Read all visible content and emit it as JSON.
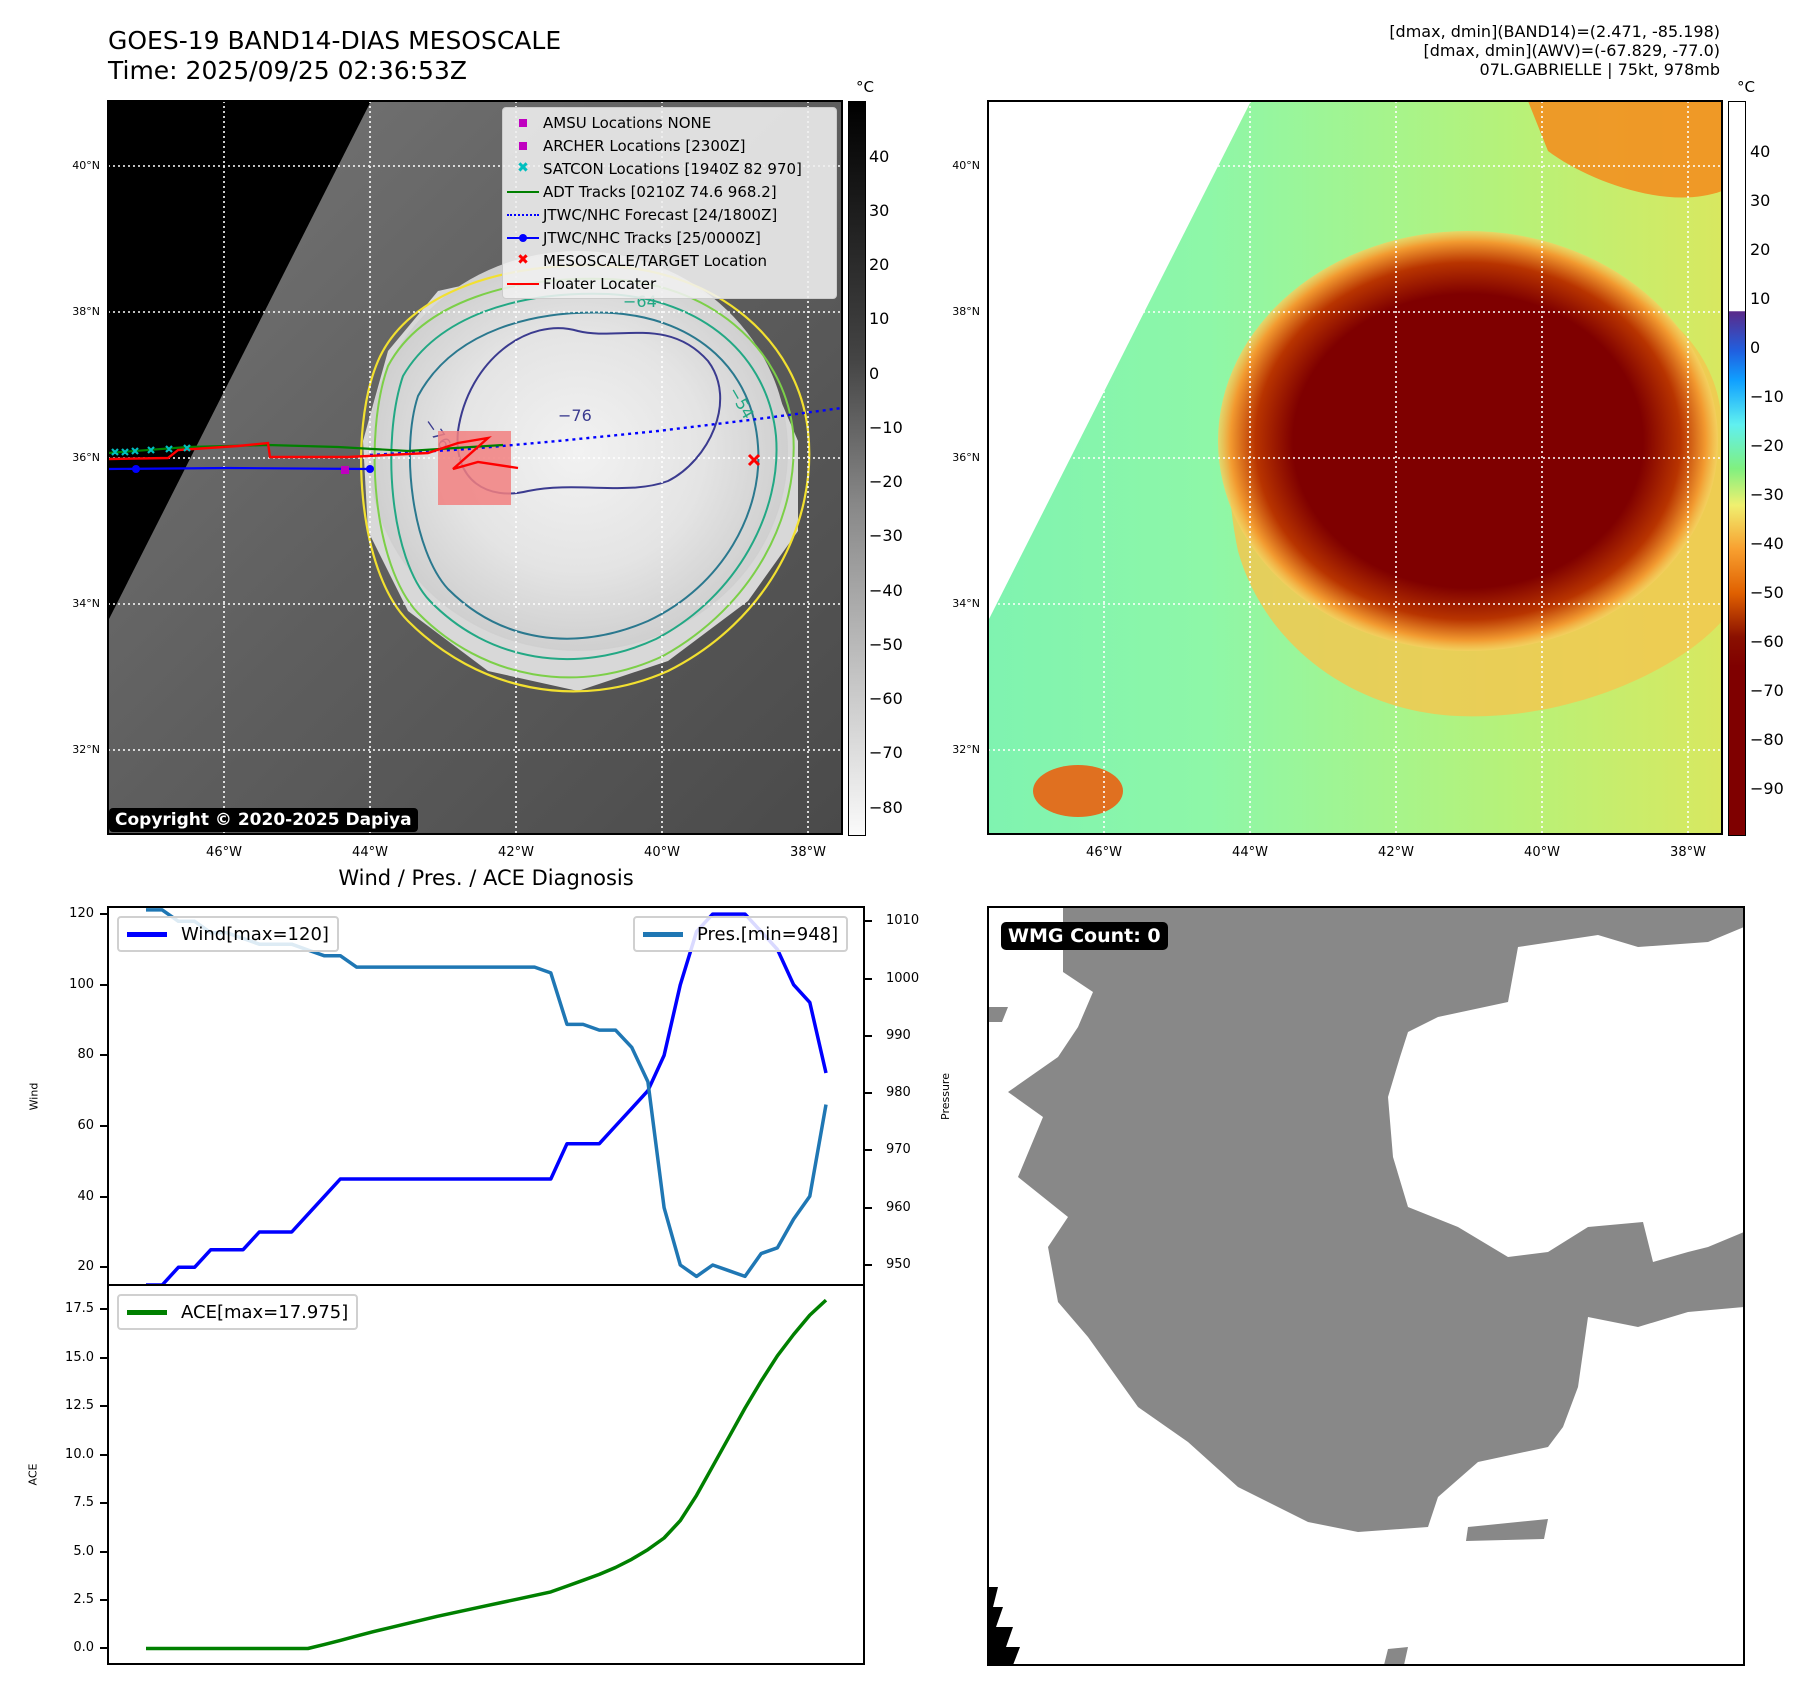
{
  "header": {
    "title": "GOES-19 BAND14-DIAS MESOSCALE",
    "time": "Time: 2025/09/25 02:36:53Z",
    "stats_band14": "[dmax, dmin](BAND14)=(2.471, -85.198)",
    "stats_awv": "[dmax, dmin](AWV)=(-67.829, -77.0)",
    "storm": "07L.GABRIELLE | 75kt, 978mb"
  },
  "maps": {
    "lat_ticks": [
      "40°N",
      "38°N",
      "36°N",
      "34°N",
      "32°N"
    ],
    "lon_ticks": [
      "46°W",
      "44°W",
      "42°W",
      "40°W",
      "38°W"
    ],
    "unit": "°C",
    "copyright": "Copyright © 2020-2025 Dapiya",
    "left_colorbar_ticks": [
      "40",
      "30",
      "20",
      "10",
      "0",
      "−10",
      "−20",
      "−30",
      "−40",
      "−50",
      "−60",
      "−70",
      "−80"
    ],
    "right_colorbar_ticks": [
      "40",
      "30",
      "20",
      "10",
      "0",
      "−10",
      "−20",
      "−30",
      "−40",
      "−50",
      "−60",
      "−70",
      "−80",
      "−90"
    ],
    "contour_labels": [
      "−76",
      "−76",
      "−64",
      "−54",
      "−54"
    ],
    "legend": [
      {
        "label": "AMSU Locations NONE",
        "symbol": "square",
        "color": "#c000c0"
      },
      {
        "label": "ARCHER Locations [2300Z]",
        "symbol": "square",
        "color": "#c000c0"
      },
      {
        "label": "SATCON Locations [1940Z 82 970]",
        "symbol": "x",
        "color": "#00bfbf"
      },
      {
        "label": "ADT Tracks [0210Z 74.6 968.2]",
        "symbol": "line",
        "color": "#008000"
      },
      {
        "label": "JTWC/NHC Forecast [24/1800Z]",
        "symbol": "dotted",
        "color": "#0000ff"
      },
      {
        "label": "JTWC/NHC Tracks [25/0000Z]",
        "symbol": "line-dot",
        "color": "#0000ff"
      },
      {
        "label": "MESOSCALE/TARGET Location",
        "symbol": "x",
        "color": "#ff0000"
      },
      {
        "label": "Floater Locater",
        "symbol": "line",
        "color": "#ff0000"
      }
    ]
  },
  "wmg": {
    "badge": "WMG Count: 0"
  },
  "chart_data": [
    {
      "type": "line",
      "title": "Wind / Pres. / ACE Diagnosis",
      "xlabel": "",
      "ylabel": "Wind",
      "ylabel_right": "Pressure",
      "ylim": [
        15,
        122
      ],
      "ylim_right": [
        946.5,
        1012.5
      ],
      "yticks": [
        "120",
        "100",
        "80",
        "60",
        "40",
        "20"
      ],
      "yticks_right": [
        "1010",
        "1000",
        "990",
        "980",
        "970",
        "960",
        "950"
      ],
      "legend_left": "Wind[max=120]",
      "legend_right": "Pres.[min=948]",
      "legend_placement": [
        "upper-left",
        "upper-right"
      ],
      "x": [
        0,
        1,
        2,
        3,
        4,
        5,
        6,
        7,
        8,
        9,
        10,
        11,
        12,
        13,
        14,
        15,
        16,
        17,
        18,
        19,
        20,
        21,
        22,
        23,
        24,
        25,
        26,
        27,
        28,
        29,
        30,
        31,
        32,
        33,
        34,
        35,
        36,
        37,
        38,
        39,
        40,
        41,
        42
      ],
      "series": [
        {
          "name": "Wind",
          "axis": "left",
          "color": "#0000ff",
          "values": [
            15,
            15,
            20,
            20,
            25,
            25,
            25,
            30,
            30,
            30,
            35,
            40,
            45,
            45,
            45,
            45,
            45,
            45,
            45,
            45,
            45,
            45,
            45,
            45,
            45,
            45,
            55,
            55,
            55,
            60,
            65,
            70,
            80,
            100,
            115,
            120,
            120,
            120,
            115,
            110,
            100,
            95,
            75
          ]
        },
        {
          "name": "Pressure",
          "axis": "right",
          "color": "#1f77b4",
          "values": [
            1012,
            1012,
            1010,
            1010,
            1008,
            1008,
            1007,
            1006,
            1006,
            1006,
            1005,
            1004,
            1004,
            1002,
            1002,
            1002,
            1002,
            1002,
            1002,
            1002,
            1002,
            1002,
            1002,
            1002,
            1002,
            1001,
            992,
            992,
            991,
            991,
            988,
            982,
            960,
            950,
            948,
            950,
            949,
            948,
            952,
            953,
            958,
            962,
            978
          ]
        }
      ]
    },
    {
      "type": "line",
      "title": "",
      "ylabel": "ACE",
      "ylim": [
        -0.8,
        18.7
      ],
      "yticks": [
        "17.5",
        "15.0",
        "12.5",
        "10.0",
        "7.5",
        "5.0",
        "2.5",
        "0.0"
      ],
      "legend": "ACE[max=17.975]",
      "legend_placement": "upper-left",
      "x": [
        0,
        1,
        2,
        3,
        4,
        5,
        6,
        7,
        8,
        9,
        10,
        11,
        12,
        13,
        14,
        15,
        16,
        17,
        18,
        19,
        20,
        21,
        22,
        23,
        24,
        25,
        26,
        27,
        28,
        29,
        30,
        31,
        32,
        33,
        34,
        35,
        36,
        37,
        38,
        39,
        40,
        41,
        42
      ],
      "series": [
        {
          "name": "ACE",
          "color": "#008000",
          "values": [
            0,
            0,
            0,
            0,
            0,
            0,
            0,
            0,
            0,
            0,
            0,
            0.2,
            0.42,
            0.64,
            0.86,
            1.06,
            1.26,
            1.46,
            1.66,
            1.84,
            2.02,
            2.2,
            2.38,
            2.56,
            2.74,
            2.92,
            3.22,
            3.52,
            3.82,
            4.18,
            4.6,
            5.1,
            5.7,
            6.6,
            7.9,
            9.4,
            10.9,
            12.4,
            13.8,
            15.1,
            16.2,
            17.2,
            17.975
          ]
        }
      ]
    }
  ]
}
